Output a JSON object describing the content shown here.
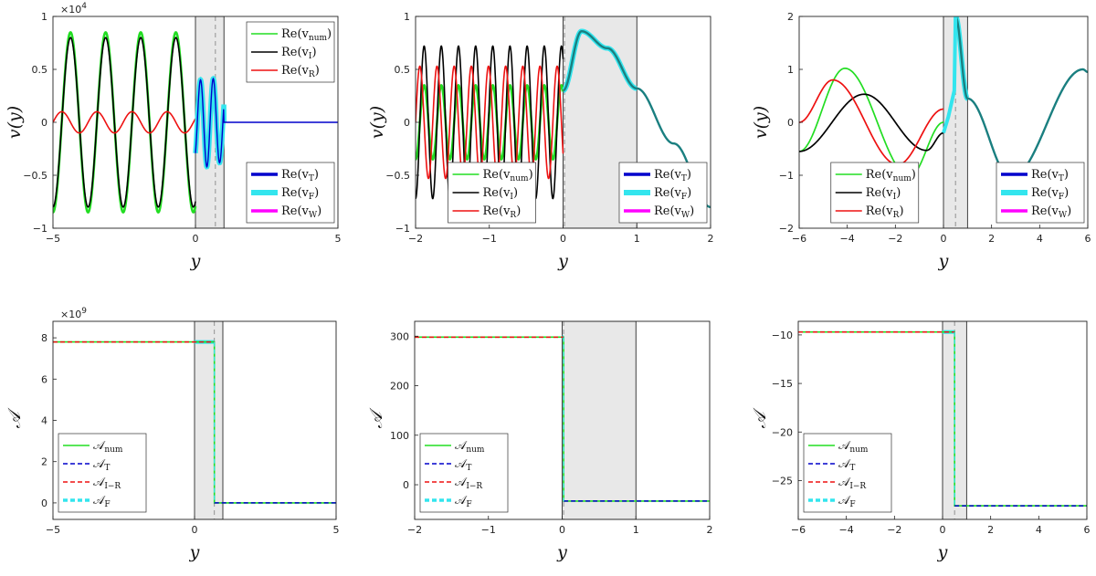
{
  "figure": {
    "panel_count": 6
  },
  "chart_data": [
    {
      "type": "line",
      "ylabel": "v(y)",
      "xlabel": "y",
      "exponent_label": "×10^4",
      "xlim": [
        -5,
        5
      ],
      "ylim": [
        -1,
        1
      ],
      "xticks": [
        "-5",
        "0",
        "5"
      ],
      "yticks": [
        "-1",
        "-0.5",
        "0",
        "0.5",
        "1"
      ],
      "shaded_region": [
        0,
        1
      ],
      "dashed_line_x": 0.7,
      "series": [
        {
          "name": "Re(v_num)",
          "color": "#22dd22",
          "amplitude": 0.85,
          "wavenumber": 5.1,
          "x_range": [
            -5,
            0
          ]
        },
        {
          "name": "Re(v_I)",
          "color": "#000000",
          "amplitude": 0.8,
          "wavenumber": 5.1,
          "x_range": [
            -5,
            0
          ]
        },
        {
          "name": "Re(v_R)",
          "color": "#ee1111",
          "amplitude": 0.1,
          "wavenumber": 5.1,
          "x_range": [
            -5,
            0
          ]
        },
        {
          "name": "Re(v_T)",
          "color": "#0000cc",
          "x_range": [
            0,
            5
          ]
        },
        {
          "name": "Re(v_F)",
          "color": "#33e5ee",
          "x_range": [
            0,
            1
          ]
        },
        {
          "name": "Re(v_W)",
          "color": "#ff00ff",
          "x_range": [
            0,
            5
          ]
        }
      ],
      "legends": [
        {
          "position": "top-right",
          "entries": [
            "Re(v_num)",
            "Re(v_I)",
            "Re(v_R)"
          ]
        },
        {
          "position": "bottom-right",
          "entries": [
            "Re(v_T)",
            "Re(v_F)",
            "Re(v_W)"
          ]
        }
      ]
    },
    {
      "type": "line",
      "ylabel": "v(y)",
      "xlabel": "y",
      "xlim": [
        -2,
        2
      ],
      "ylim": [
        -1,
        1
      ],
      "xticks": [
        "-2",
        "-1",
        "0",
        "1",
        "2"
      ],
      "yticks": [
        "-1",
        "-0.5",
        "0",
        "0.5",
        "1"
      ],
      "shaded_region": [
        0,
        1
      ],
      "dashed_line_x": 0.02,
      "series": [
        {
          "name": "Re(v_num)",
          "color": "#22dd22",
          "amplitude": 0.35,
          "wavenumber": 27,
          "x_range": [
            -2,
            0
          ]
        },
        {
          "name": "Re(v_I)",
          "color": "#000000",
          "amplitude": 0.72,
          "wavenumber": 27,
          "x_range": [
            -2,
            0
          ]
        },
        {
          "name": "Re(v_R)",
          "color": "#ee1111",
          "amplitude": 0.53,
          "wavenumber": 27,
          "x_range": [
            -2,
            0
          ]
        },
        {
          "name": "Re(v_T)",
          "color": "#0000cc",
          "x_range": [
            0,
            2
          ],
          "x": [
            0,
            0.25,
            0.6,
            1.0,
            1.5,
            2.0
          ],
          "y": [
            0.3,
            0.86,
            0.7,
            0.32,
            -0.2,
            -0.8
          ]
        },
        {
          "name": "Re(v_F)",
          "color": "#33e5ee",
          "x_range": [
            0,
            1
          ]
        },
        {
          "name": "Re(v_W)",
          "color": "#ff00ff",
          "x_range": [
            0,
            2
          ]
        }
      ],
      "legends": [
        {
          "position": "bottom-center",
          "entries": [
            "Re(v_num)",
            "Re(v_I)",
            "Re(v_R)"
          ]
        },
        {
          "position": "bottom-right",
          "entries": [
            "Re(v_T)",
            "Re(v_F)",
            "Re(v_W)"
          ]
        }
      ]
    },
    {
      "type": "line",
      "ylabel": "v(y)",
      "xlabel": "y",
      "xlim": [
        -6,
        6
      ],
      "ylim": [
        -2,
        2
      ],
      "xticks": [
        "-6",
        "-4",
        "-2",
        "0",
        "2",
        "4",
        "6"
      ],
      "yticks": [
        "-2",
        "-1",
        "0",
        "1",
        "2"
      ],
      "shaded_region": [
        0,
        1
      ],
      "dashed_line_x": 0.5,
      "series": [
        {
          "name": "Re(v_num)",
          "color": "#22dd22",
          "x": [
            -6,
            -4.1,
            -1.4,
            0
          ],
          "y": [
            -0.55,
            1.02,
            -1.02,
            0.0
          ]
        },
        {
          "name": "Re(v_I)",
          "color": "#000000",
          "x": [
            -6,
            -3.3,
            -0.7,
            0
          ],
          "y": [
            -0.55,
            0.53,
            -0.53,
            -0.2
          ]
        },
        {
          "name": "Re(v_R)",
          "color": "#ee1111",
          "x": [
            -6,
            -4.6,
            -1.9,
            0
          ],
          "y": [
            0.0,
            0.8,
            -0.8,
            0.25
          ]
        },
        {
          "name": "Re(v_T)",
          "color": "#0000cc",
          "x": [
            0.5,
            1.0,
            2.8,
            5.8,
            6.0
          ],
          "y": [
            2.0,
            0.45,
            -1.05,
            1.0,
            0.95
          ]
        },
        {
          "name": "Re(v_F)",
          "color": "#33e5ee",
          "x_range": [
            0,
            1
          ]
        },
        {
          "name": "Re(v_W)",
          "color": "#ff00ff",
          "x_range": [
            0,
            6
          ]
        }
      ],
      "legends": [
        {
          "position": "bottom-center",
          "entries": [
            "Re(v_num)",
            "Re(v_I)",
            "Re(v_R)"
          ]
        },
        {
          "position": "bottom-right",
          "entries": [
            "Re(v_T)",
            "Re(v_F)",
            "Re(v_W)"
          ]
        }
      ]
    },
    {
      "type": "line",
      "ylabel": "𝒜",
      "xlabel": "y",
      "exponent_label": "×10^9",
      "xlim": [
        -5,
        5
      ],
      "ylim": [
        -0.8,
        8.8
      ],
      "xticks": [
        "-5",
        "0",
        "5"
      ],
      "yticks": [
        "0",
        "2",
        "4",
        "6",
        "8"
      ],
      "shaded_region": [
        0,
        1
      ],
      "dashed_line_x": 0.7,
      "step": {
        "x_step": 0.7,
        "y_before": 7.8,
        "y_after": 0
      },
      "series": [
        {
          "name": "𝒜_num",
          "color": "#22dd22"
        },
        {
          "name": "𝒜_T",
          "color": "#0000cc"
        },
        {
          "name": "𝒜_I−R",
          "color": "#ee1111"
        },
        {
          "name": "𝒜_F",
          "color": "#33e5ee"
        }
      ],
      "legends": [
        {
          "position": "bottom-left",
          "entries": [
            "𝒜_num",
            "𝒜_T",
            "𝒜_I−R",
            "𝒜_F"
          ]
        }
      ]
    },
    {
      "type": "line",
      "ylabel": "𝒜",
      "xlabel": "y",
      "xlim": [
        -2,
        2
      ],
      "ylim": [
        -70,
        330
      ],
      "xticks": [
        "-2",
        "-1",
        "0",
        "1",
        "2"
      ],
      "yticks": [
        "0",
        "100",
        "200",
        "300"
      ],
      "shaded_region": [
        0,
        1
      ],
      "dashed_line_x": 0.02,
      "step": {
        "x_step": 0.02,
        "y_before": 298,
        "y_after": -33
      },
      "series": [
        {
          "name": "𝒜_num",
          "color": "#22dd22"
        },
        {
          "name": "𝒜_T",
          "color": "#0000cc"
        },
        {
          "name": "𝒜_I−R",
          "color": "#ee1111"
        },
        {
          "name": "𝒜_F",
          "color": "#33e5ee"
        }
      ],
      "legends": [
        {
          "position": "bottom-left",
          "entries": [
            "𝒜_num",
            "𝒜_T",
            "𝒜_I−R",
            "𝒜_F"
          ]
        }
      ]
    },
    {
      "type": "line",
      "ylabel": "𝒜",
      "xlabel": "y",
      "xlim": [
        -6,
        6
      ],
      "ylim": [
        -29,
        -8.6
      ],
      "xticks": [
        "-6",
        "-4",
        "-2",
        "0",
        "2",
        "4",
        "6"
      ],
      "yticks": [
        "-25",
        "-20",
        "-15",
        "-10"
      ],
      "shaded_region": [
        0,
        1
      ],
      "dashed_line_x": 0.5,
      "step": {
        "x_step": 0.5,
        "y_before": -9.7,
        "y_after": -27.6
      },
      "series": [
        {
          "name": "𝒜_num",
          "color": "#22dd22"
        },
        {
          "name": "𝒜_T",
          "color": "#0000cc"
        },
        {
          "name": "𝒜_I−R",
          "color": "#ee1111"
        },
        {
          "name": "𝒜_F",
          "color": "#33e5ee"
        }
      ],
      "legends": [
        {
          "position": "bottom-left",
          "entries": [
            "𝒜_num",
            "𝒜_T",
            "𝒜_I−R",
            "𝒜_F"
          ]
        }
      ]
    }
  ]
}
